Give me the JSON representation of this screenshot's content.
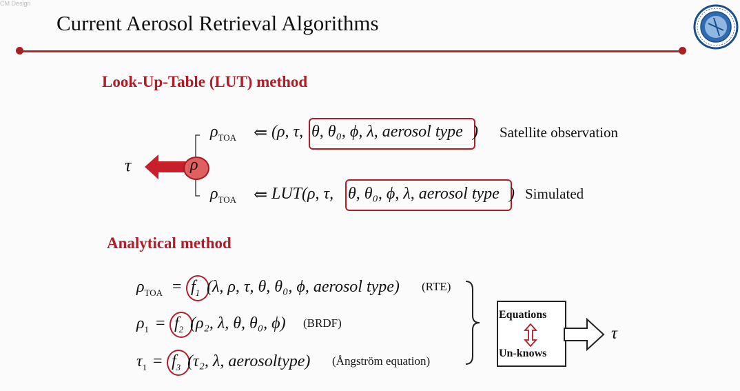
{
  "watermark": "CM Design",
  "title": "Current Aerosol Retrieval Algorithms",
  "lut": {
    "heading": "Look-Up-Table (LUT) method",
    "rho": "ρ",
    "tau": "τ",
    "eq1": {
      "lhs": "ρ",
      "lhs_sub": "TOA",
      "arrow": "⇐",
      "prefix": "(ρ, τ, ",
      "boxed": "θ, θ₀, ϕ, λ, aerosol type",
      "suffix": ")",
      "label": "Satellite observation"
    },
    "eq2": {
      "lhs": "ρ",
      "lhs_sub": "TOA",
      "arrow": "⇐",
      "prefix": "LUT(ρ, τ, ",
      "boxed": "θ, θ₀, ϕ, λ, aerosol type",
      "suffix": ")",
      "label": "Simulated"
    }
  },
  "analytical": {
    "heading": "Analytical method",
    "eq1": {
      "lhs": "ρ",
      "lhs_sub": "TOA",
      "eqsign": "=",
      "fn": "f",
      "fn_sub": "1",
      "args": "(λ, ρ, τ, θ, θ₀, ϕ, aerosol type)",
      "label": "(RTE)"
    },
    "eq2": {
      "lhs": "ρ",
      "lhs_sub": "1",
      "eqsign": "=",
      "fn": "f",
      "fn_sub": "2",
      "args": "(ρ₂, λ, θ, θ₀, ϕ)",
      "label": "(BRDF)"
    },
    "eq3": {
      "lhs": "τ",
      "lhs_sub": "1",
      "eqsign": "=",
      "fn": "f",
      "fn_sub": "3",
      "args": "(τ₂, λ, aerosoltype)",
      "label": "(Ångström equation)"
    },
    "box_top": "Equations",
    "box_bottom": "Un-knows",
    "result": "τ"
  },
  "colors": {
    "accent": "#b01c28",
    "rho_fill": "#e06060"
  },
  "icons": {
    "logo": "university-seal",
    "arrow": "thick-left-arrow",
    "double_arrow": "up-down-arrow"
  }
}
